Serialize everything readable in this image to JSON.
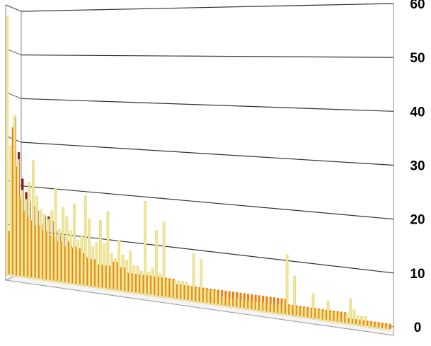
{
  "chart_data": {
    "type": "bar",
    "title": "",
    "xlabel": "",
    "ylabel": "",
    "ylim": [
      0,
      60
    ],
    "y_ticks": [
      "0",
      "10",
      "20",
      "30",
      "40",
      "50",
      "60"
    ],
    "grid": true,
    "legend": "none",
    "style": "3d-perspective",
    "series": [
      {
        "color": "#8b1a1a",
        "values": [
          13,
          36,
          28,
          22,
          19,
          17,
          16,
          15,
          12,
          14,
          14,
          13,
          11,
          10,
          10,
          9,
          8,
          8,
          7,
          6,
          6,
          5,
          5,
          4,
          4,
          3,
          3,
          3,
          3,
          3,
          2,
          2,
          2,
          2,
          2,
          2,
          2,
          1,
          1,
          1,
          1,
          1,
          1,
          1,
          1,
          1,
          1,
          1,
          1,
          1,
          1,
          1,
          1,
          1,
          1,
          0,
          0,
          0,
          0,
          0,
          0,
          0,
          0,
          0,
          0,
          0,
          0,
          0,
          0,
          0,
          0,
          0,
          0,
          0,
          0,
          0,
          0,
          0,
          0,
          0,
          0,
          0,
          0,
          0,
          0,
          0,
          0,
          0,
          0,
          0,
          0,
          0,
          0,
          0,
          0,
          0,
          0,
          0,
          0,
          0,
          0,
          0,
          0
        ]
      },
      {
        "color": "#f07f10",
        "values": [
          10,
          34,
          25,
          18,
          15,
          14,
          13,
          12,
          12,
          11,
          11,
          10,
          10,
          9,
          9,
          8,
          9,
          8,
          8,
          8,
          7,
          6,
          6,
          6,
          5,
          5,
          5,
          5,
          6,
          6,
          5,
          5,
          4,
          4,
          4,
          4,
          4,
          4,
          4,
          4,
          4,
          4,
          4,
          4,
          4,
          3,
          3,
          3,
          3,
          3,
          3,
          3,
          3,
          3,
          3,
          3,
          3,
          3,
          3,
          3,
          3,
          3,
          3,
          3,
          3,
          3,
          3,
          3,
          3,
          3,
          3,
          3,
          3,
          3,
          3,
          2,
          2,
          2,
          2,
          2,
          2,
          2,
          2,
          2,
          2,
          2,
          2,
          2,
          2,
          2,
          2,
          1,
          1,
          1,
          1,
          1,
          1,
          1,
          1,
          1,
          1,
          1,
          1
        ]
      },
      {
        "color": "#f2e894",
        "values": [
          60,
          30,
          37,
          27,
          20,
          18,
          22,
          27,
          19,
          16,
          15,
          14,
          16,
          21,
          12,
          17,
          15,
          12,
          18,
          10,
          11,
          20,
          15,
          9,
          10,
          15,
          10,
          17,
          8,
          7,
          11,
          8,
          7,
          9,
          6,
          6,
          5,
          20,
          5,
          6,
          14,
          5,
          16,
          4,
          4,
          4,
          4,
          4,
          4,
          3,
          10,
          3,
          9,
          3,
          3,
          3,
          3,
          2,
          2,
          2,
          2,
          2,
          2,
          2,
          2,
          2,
          2,
          2,
          2,
          2,
          2,
          2,
          2,
          2,
          2,
          12,
          2,
          8,
          2,
          2,
          2,
          2,
          5,
          2,
          2,
          2,
          4,
          2,
          2,
          2,
          2,
          2,
          5,
          3,
          2,
          2,
          2,
          1,
          1,
          1,
          1,
          1,
          1
        ]
      }
    ]
  }
}
